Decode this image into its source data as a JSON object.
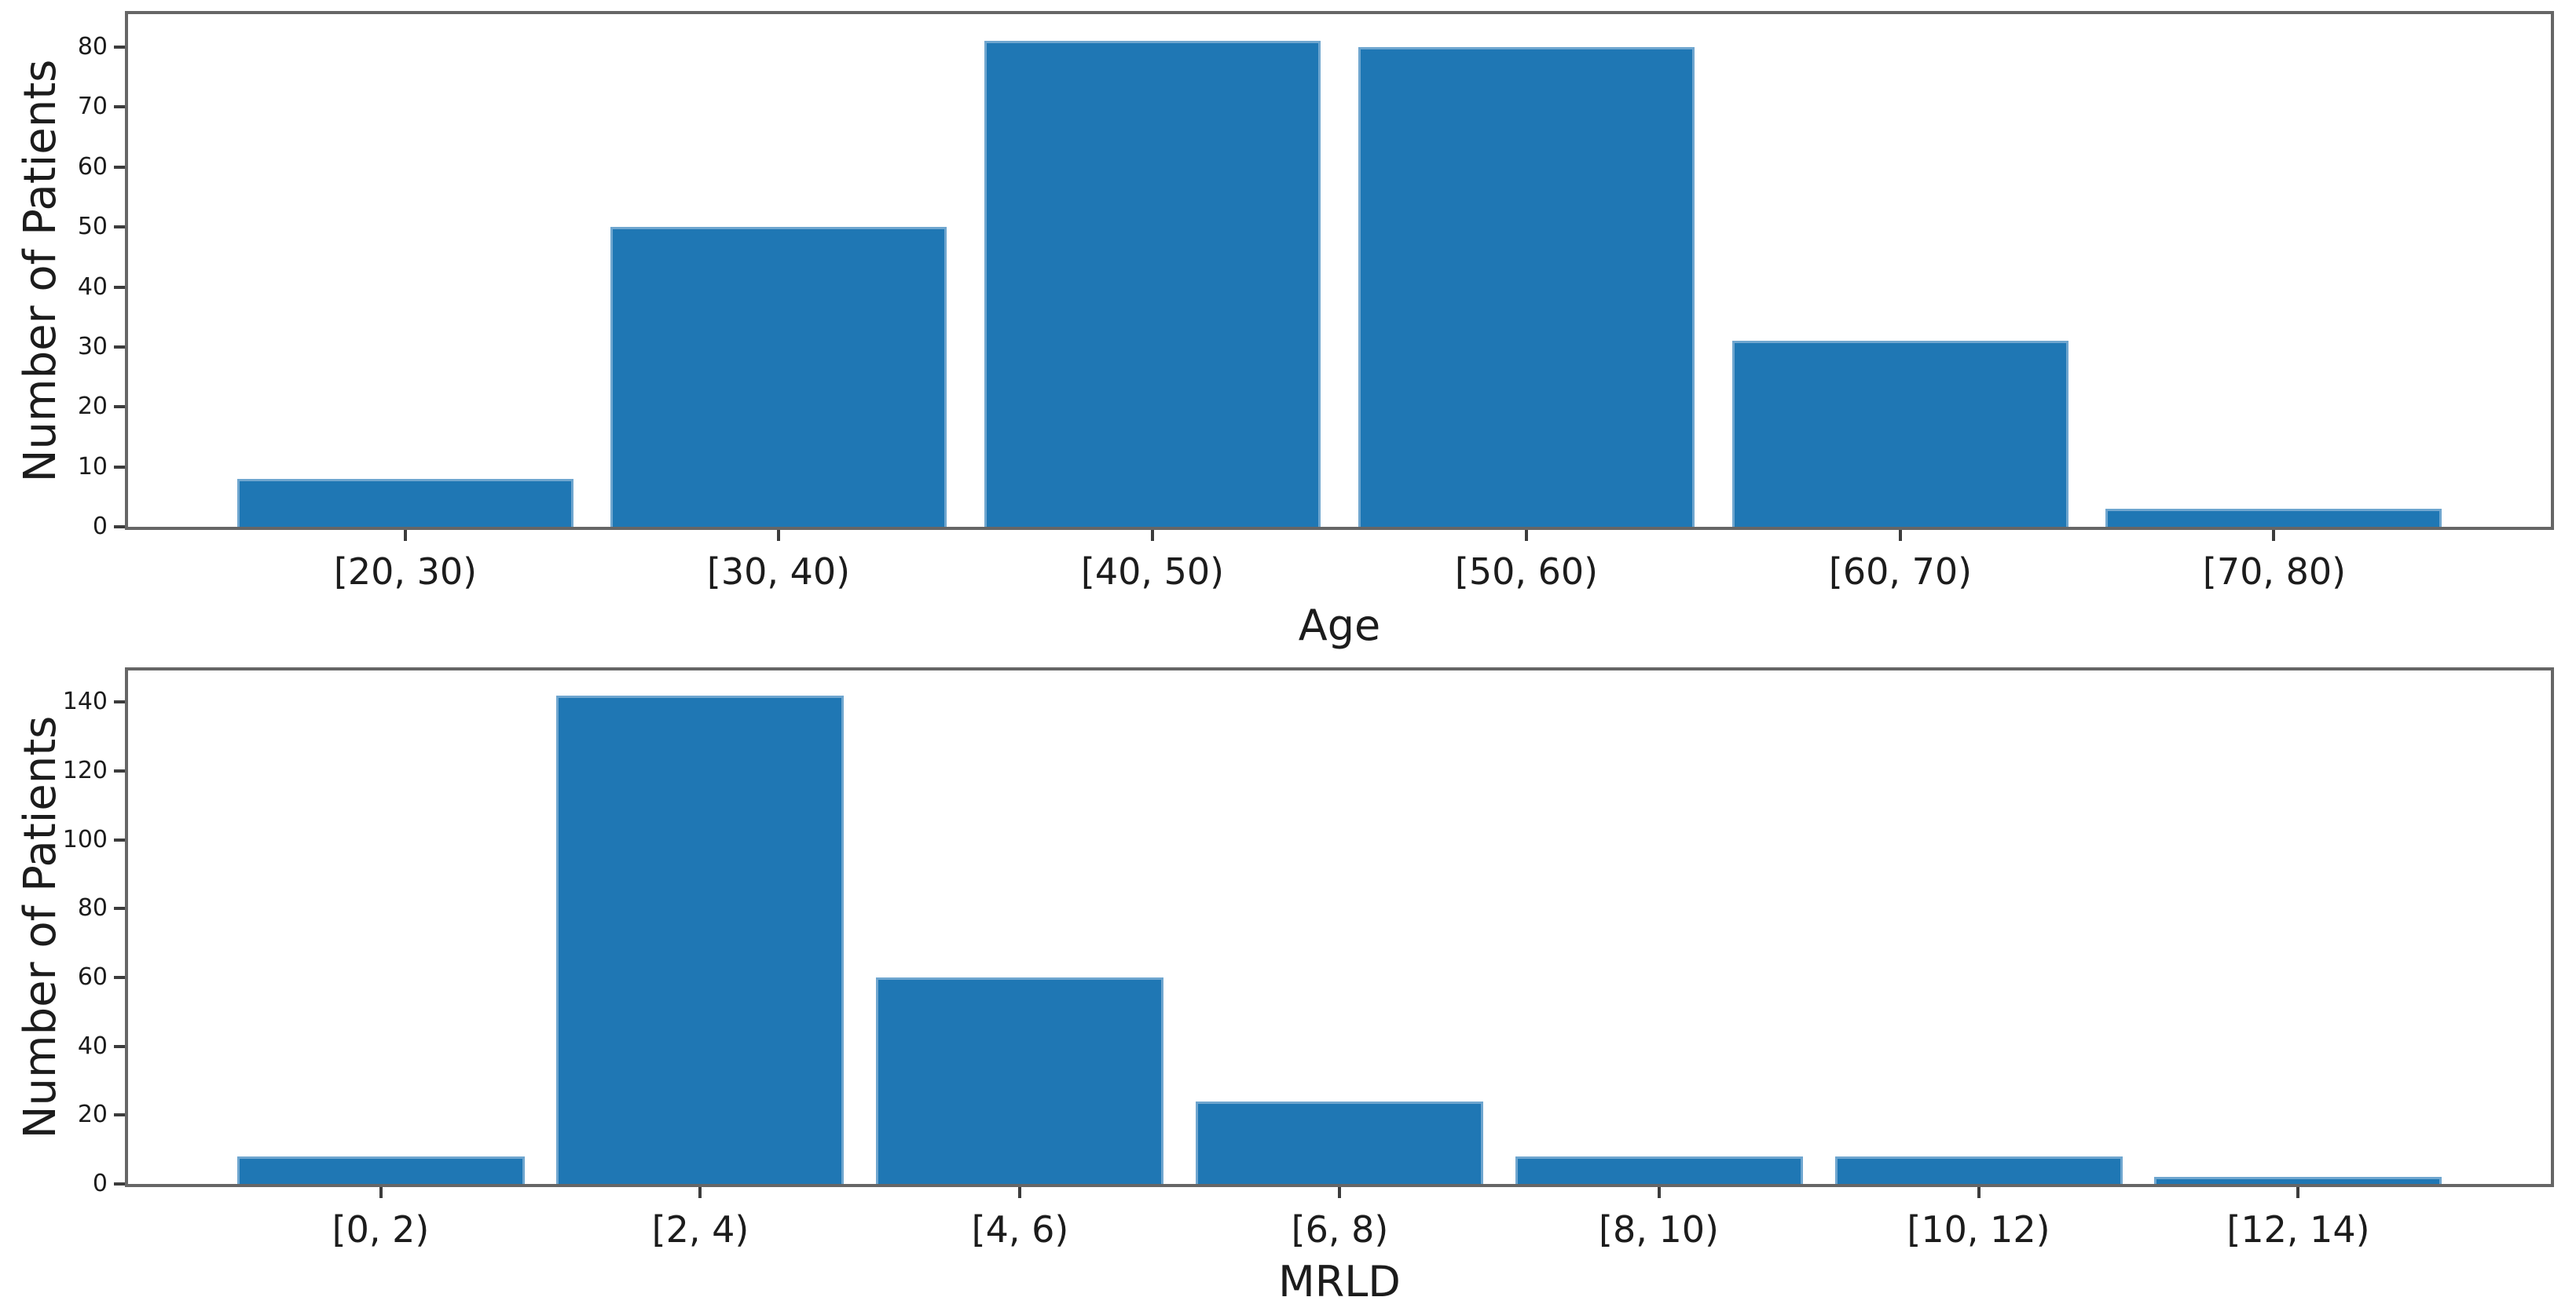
{
  "figure": {
    "background": "#ffffff",
    "bar_color": "#1f77b4",
    "spine_color": "#666666"
  },
  "chart_data": [
    {
      "type": "bar",
      "title": "",
      "categories": [
        "[20, 30)",
        "[30, 40)",
        "[40, 50)",
        "[50, 60)",
        "[60, 70)",
        "[70, 80)"
      ],
      "values": [
        8,
        50,
        81,
        80,
        31,
        3
      ],
      "xlabel": "Age",
      "ylabel": "Number of Patients",
      "yticks": [
        0,
        10,
        20,
        30,
        40,
        50,
        60,
        70,
        80
      ],
      "ylim": [
        0,
        85.5
      ],
      "grid": false,
      "legend": null,
      "bar_color": "#1f77b4"
    },
    {
      "type": "bar",
      "title": "",
      "categories": [
        "[0, 2)",
        "[2, 4)",
        "[4, 6)",
        "[6, 8)",
        "[8, 10)",
        "[10, 12)",
        "[12, 14)"
      ],
      "values": [
        8,
        142,
        60,
        24,
        8,
        8,
        2
      ],
      "xlabel": "MRLD",
      "ylabel": "Number of Patients",
      "yticks": [
        0,
        20,
        40,
        60,
        80,
        100,
        120,
        140
      ],
      "ylim": [
        0,
        149.2
      ],
      "grid": false,
      "legend": null,
      "bar_color": "#1f77b4"
    }
  ]
}
